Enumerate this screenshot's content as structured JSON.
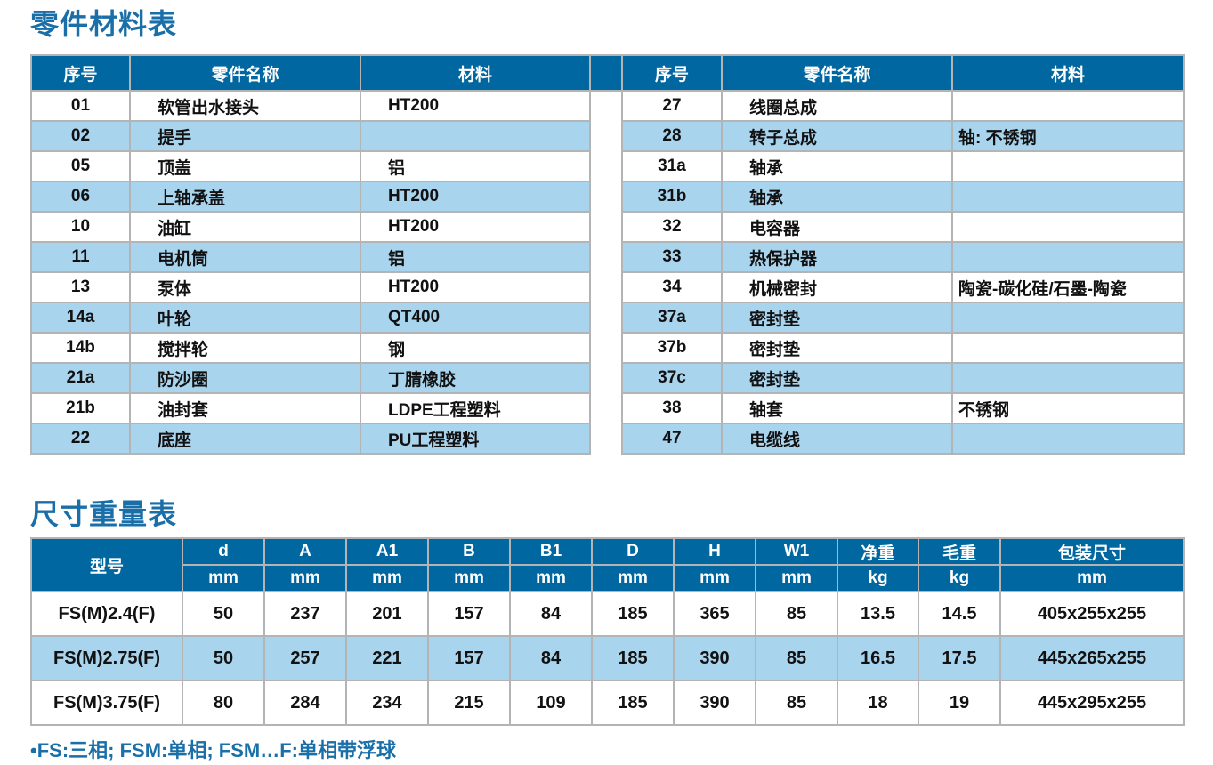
{
  "parts_title": "零件材料表",
  "parts_headers": [
    "序号",
    "零件名称",
    "材料"
  ],
  "parts_left": [
    [
      "01",
      "软管出水接头",
      "HT200"
    ],
    [
      "02",
      "提手",
      ""
    ],
    [
      "05",
      "顶盖",
      "铝"
    ],
    [
      "06",
      "上轴承盖",
      "HT200"
    ],
    [
      "10",
      "油缸",
      "HT200"
    ],
    [
      "11",
      "电机筒",
      "铝"
    ],
    [
      "13",
      "泵体",
      "HT200"
    ],
    [
      "14a",
      "叶轮",
      "QT400"
    ],
    [
      "14b",
      "搅拌轮",
      "钢"
    ],
    [
      "21a",
      "防沙圈",
      "丁腈橡胶"
    ],
    [
      "21b",
      "油封套",
      "LDPE工程塑料"
    ],
    [
      "22",
      "底座",
      "PU工程塑料"
    ]
  ],
  "parts_right": [
    [
      "27",
      "线圈总成",
      ""
    ],
    [
      "28",
      "转子总成",
      "轴: 不锈钢"
    ],
    [
      "31a",
      "轴承",
      ""
    ],
    [
      "31b",
      "轴承",
      ""
    ],
    [
      "32",
      "电容器",
      ""
    ],
    [
      "33",
      "热保护器",
      ""
    ],
    [
      "34",
      "机械密封",
      "陶瓷-碳化硅/石墨-陶瓷"
    ],
    [
      "37a",
      "密封垫",
      ""
    ],
    [
      "37b",
      "密封垫",
      ""
    ],
    [
      "37c",
      "密封垫",
      ""
    ],
    [
      "38",
      "轴套",
      "不锈钢"
    ],
    [
      "47",
      "电缆线",
      ""
    ]
  ],
  "dims_title": "尺寸重量表",
  "dims_model_header": "型号",
  "dims_headers": [
    "d",
    "A",
    "A1",
    "B",
    "B1",
    "D",
    "H",
    "W1",
    "净重",
    "毛重",
    "包装尺寸"
  ],
  "dims_units": [
    "mm",
    "mm",
    "mm",
    "mm",
    "mm",
    "mm",
    "mm",
    "mm",
    "kg",
    "kg",
    "mm"
  ],
  "dims_rows": [
    [
      "FS(M)2.4(F)",
      "50",
      "237",
      "201",
      "157",
      "84",
      "185",
      "365",
      "85",
      "13.5",
      "14.5",
      "405x255x255"
    ],
    [
      "FS(M)2.75(F)",
      "50",
      "257",
      "221",
      "157",
      "84",
      "185",
      "390",
      "85",
      "16.5",
      "17.5",
      "445x265x255"
    ],
    [
      "FS(M)3.75(F)",
      "80",
      "284",
      "234",
      "215",
      "109",
      "185",
      "390",
      "85",
      "18",
      "19",
      "445x295x255"
    ]
  ],
  "footnote": "•FS:三相; FSM:单相; FSM…F:单相带浮球",
  "colors": {
    "header": "#0067a0",
    "alt_row": "#a9d4ee",
    "title": "#1a6fa8"
  }
}
